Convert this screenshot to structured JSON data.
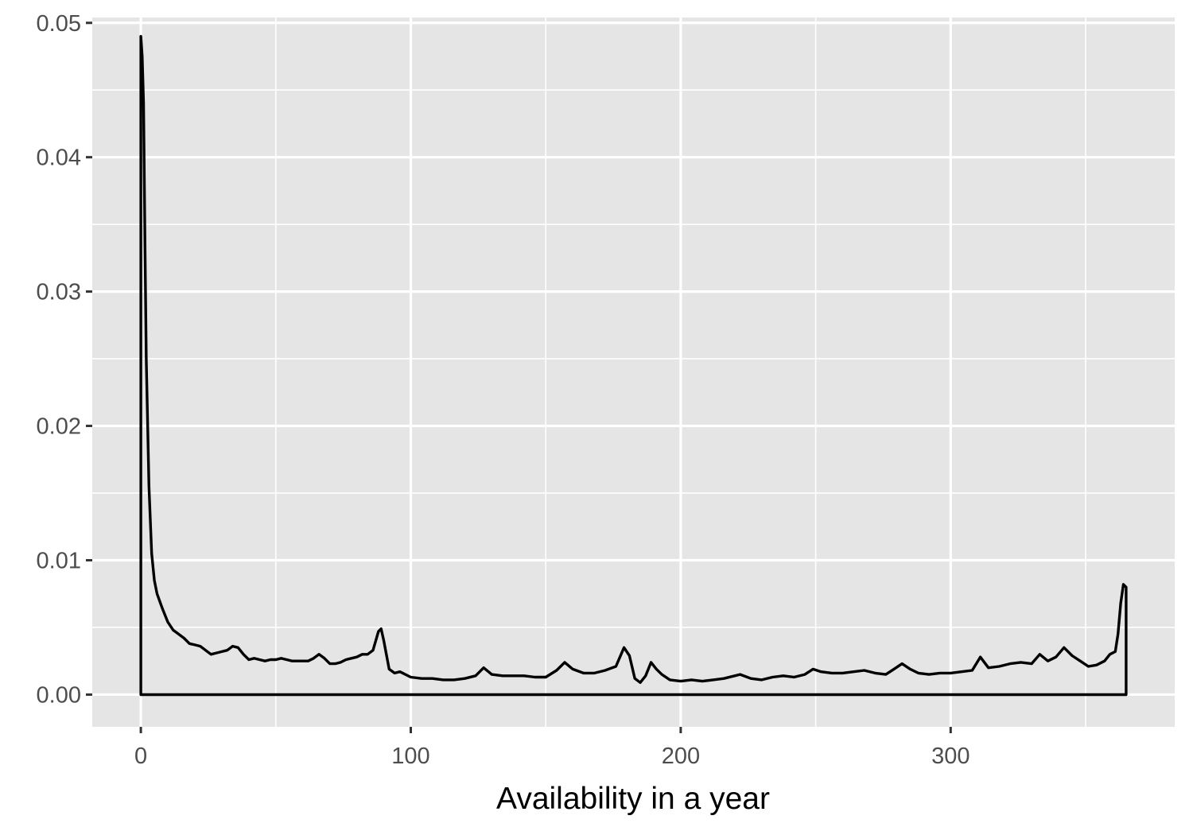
{
  "chart_data": {
    "type": "area",
    "title": "",
    "xlabel": "Availability in a year",
    "ylabel": "",
    "xlim": [
      -18,
      383
    ],
    "ylim": [
      -0.0024,
      0.0504
    ],
    "x_ticks": [
      0,
      100,
      200,
      300
    ],
    "x_tick_labels": [
      "0",
      "100",
      "200",
      "300"
    ],
    "y_ticks": [
      0,
      0.01,
      0.02,
      0.03,
      0.04,
      0.05
    ],
    "y_tick_labels": [
      "0.00",
      "0.01",
      "0.02",
      "0.03",
      "0.04",
      "0.05"
    ],
    "grid": true,
    "legend": "none",
    "colors": {
      "panel_background": "#e5e5e5",
      "grid_major": "#ffffff",
      "line": "#000000",
      "tick_text": "#4d4d4d"
    },
    "series": [
      {
        "x": [
          0,
          0.5,
          1,
          1.5,
          2,
          3,
          4,
          5,
          6,
          8,
          10,
          12,
          14,
          16,
          18,
          20,
          22,
          24,
          26,
          28,
          30,
          32,
          34,
          36,
          38,
          40,
          42,
          44,
          46,
          48,
          50,
          52,
          54,
          56,
          58,
          60,
          62,
          64,
          66,
          68,
          70,
          72,
          74,
          76,
          78,
          80,
          82,
          84,
          86,
          88,
          89,
          90,
          92,
          94,
          96,
          98,
          100,
          104,
          108,
          112,
          116,
          120,
          124,
          127,
          130,
          134,
          138,
          142,
          146,
          150,
          154,
          157,
          160,
          164,
          168,
          172,
          176,
          179,
          181,
          183,
          185,
          187,
          189,
          191,
          193,
          196,
          200,
          204,
          208,
          212,
          216,
          220,
          222,
          226,
          230,
          234,
          238,
          242,
          246,
          249,
          252,
          256,
          260,
          264,
          268,
          272,
          276,
          279,
          282,
          285,
          288,
          292,
          296,
          300,
          304,
          308,
          311,
          314,
          318,
          322,
          326,
          330,
          333,
          336,
          339,
          342,
          345,
          348,
          351,
          354,
          357,
          359,
          361,
          362,
          363,
          364,
          365
        ],
        "y": [
          0.049,
          0.0475,
          0.044,
          0.034,
          0.025,
          0.0155,
          0.0105,
          0.0085,
          0.0075,
          0.0064,
          0.0054,
          0.0048,
          0.0045,
          0.0042,
          0.0038,
          0.0037,
          0.0036,
          0.0033,
          0.003,
          0.0031,
          0.0032,
          0.0033,
          0.0036,
          0.0035,
          0.003,
          0.0026,
          0.0027,
          0.0026,
          0.0025,
          0.0026,
          0.0026,
          0.0027,
          0.0026,
          0.0025,
          0.0025,
          0.0025,
          0.0025,
          0.0027,
          0.003,
          0.0027,
          0.0023,
          0.0023,
          0.0024,
          0.0026,
          0.0027,
          0.0028,
          0.003,
          0.003,
          0.0033,
          0.0047,
          0.0049,
          0.004,
          0.0019,
          0.0016,
          0.0017,
          0.0015,
          0.0013,
          0.0012,
          0.0012,
          0.0011,
          0.0011,
          0.0012,
          0.0014,
          0.002,
          0.0015,
          0.0014,
          0.0014,
          0.0014,
          0.0013,
          0.0013,
          0.0018,
          0.0024,
          0.0019,
          0.0016,
          0.0016,
          0.0018,
          0.0021,
          0.0035,
          0.0029,
          0.0012,
          0.0009,
          0.0014,
          0.0024,
          0.0019,
          0.0015,
          0.0011,
          0.001,
          0.0011,
          0.001,
          0.0011,
          0.0012,
          0.0014,
          0.0015,
          0.0012,
          0.0011,
          0.0013,
          0.0014,
          0.0013,
          0.0015,
          0.0019,
          0.0017,
          0.0016,
          0.0016,
          0.0017,
          0.0018,
          0.0016,
          0.0015,
          0.0019,
          0.0023,
          0.0019,
          0.0016,
          0.0015,
          0.0016,
          0.0016,
          0.0017,
          0.0018,
          0.0028,
          0.002,
          0.0021,
          0.0023,
          0.0024,
          0.0023,
          0.003,
          0.0025,
          0.0028,
          0.0035,
          0.0029,
          0.0025,
          0.0021,
          0.0022,
          0.0025,
          0.003,
          0.0032,
          0.0045,
          0.0068,
          0.0082,
          0.008
        ]
      }
    ]
  }
}
